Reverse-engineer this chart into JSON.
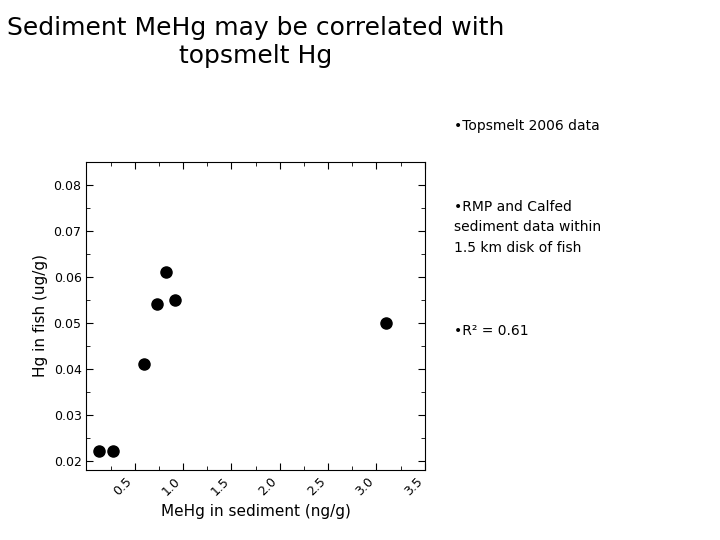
{
  "title": "Sediment MeHg may be correlated with\ntopsmelt Hg",
  "xlabel": "MeHg in sediment (ng/g)",
  "ylabel": "Hg in fish (ug/g)",
  "x_data": [
    0.13,
    0.27,
    0.6,
    0.73,
    0.82,
    0.92,
    3.1
  ],
  "y_data": [
    0.022,
    0.022,
    0.041,
    0.054,
    0.061,
    0.055,
    0.05
  ],
  "xlim": [
    0,
    3.5
  ],
  "ylim": [
    0.018,
    0.085
  ],
  "xticks": [
    0.5,
    1.0,
    1.5,
    2.0,
    2.5,
    3.0,
    3.5
  ],
  "yticks": [
    0.02,
    0.03,
    0.04,
    0.05,
    0.06,
    0.07,
    0.08
  ],
  "marker_color": "black",
  "marker_size": 8,
  "title_fontsize": 18,
  "label_fontsize": 11,
  "tick_fontsize": 9,
  "annotation1": "•Topsmelt 2006 data",
  "annotation2": "•RMP and Calfed\nsediment data within\n1.5 km disk of fish",
  "annotation3": "•R² = 0.61",
  "bg_color": "#ffffff"
}
